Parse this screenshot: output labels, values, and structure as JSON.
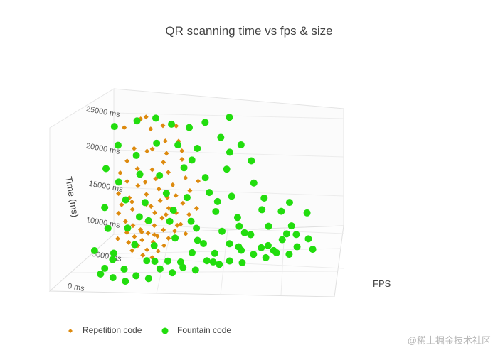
{
  "chart_data": {
    "type": "scatter",
    "title": "QR scanning time vs fps & size",
    "z_axis": {
      "label": "Time (ms)",
      "ticks": [
        "0 ms",
        "5000 ms",
        "10000 ms",
        "15000 ms",
        "20000 ms",
        "25000 ms"
      ],
      "range": [
        0,
        27000
      ]
    },
    "x_axis": {
      "label": "FPS"
    },
    "series": [
      {
        "name": "Repetition code",
        "color": "#dd8a0e",
        "marker": "diamond",
        "points": [
          [
            190,
            22300
          ],
          [
            105,
            25900
          ],
          [
            175,
            24800
          ],
          [
            120,
            26200
          ],
          [
            140,
            24300
          ],
          [
            60,
            24600
          ],
          [
            155,
            21100
          ],
          [
            230,
            22200
          ],
          [
            85,
            19400
          ],
          [
            200,
            20300
          ],
          [
            165,
            17800
          ],
          [
            120,
            18100
          ],
          [
            250,
            19200
          ],
          [
            215,
            17200
          ],
          [
            180,
            16300
          ],
          [
            130,
            15400
          ],
          [
            95,
            16200
          ],
          [
            270,
            16100
          ],
          [
            235,
            15100
          ],
          [
            195,
            14600
          ],
          [
            160,
            13900
          ],
          [
            110,
            13600
          ],
          [
            75,
            14400
          ],
          [
            290,
            13900
          ],
          [
            250,
            13300
          ],
          [
            205,
            12700
          ],
          [
            165,
            12300
          ],
          [
            125,
            11700
          ],
          [
            90,
            12600
          ],
          [
            275,
            11900
          ],
          [
            235,
            11300
          ],
          [
            195,
            10800
          ],
          [
            150,
            10300
          ],
          [
            110,
            9900
          ],
          [
            260,
            10400
          ],
          [
            220,
            9800
          ],
          [
            175,
            9500
          ],
          [
            135,
            9100
          ],
          [
            300,
            9900
          ],
          [
            245,
            8900
          ],
          [
            200,
            8700
          ],
          [
            160,
            8300
          ],
          [
            120,
            8100
          ],
          [
            280,
            8400
          ],
          [
            230,
            7800
          ],
          [
            185,
            7600
          ],
          [
            145,
            7300
          ],
          [
            265,
            7400
          ],
          [
            215,
            6900
          ],
          [
            170,
            6600
          ],
          [
            130,
            6500
          ],
          [
            250,
            6300
          ],
          [
            205,
            6000
          ],
          [
            160,
            5800
          ],
          [
            240,
            5200
          ],
          [
            190,
            4900
          ],
          [
            145,
            5100
          ],
          [
            225,
            4400
          ],
          [
            180,
            4100
          ],
          [
            210,
            3500
          ],
          [
            100,
            21300
          ],
          [
            215,
            24700
          ],
          [
            70,
            17600
          ],
          [
            310,
            15400
          ],
          [
            85,
            11300
          ],
          [
            320,
            10800
          ],
          [
            95,
            7300
          ],
          [
            300,
            6700
          ],
          [
            195,
            18900
          ],
          [
            140,
            20800
          ],
          [
            245,
            20600
          ],
          [
            180,
            11900
          ],
          [
            150,
            15900
          ],
          [
            225,
            13100
          ],
          [
            180,
            9700
          ],
          [
            205,
            7200
          ],
          [
            165,
            7900
          ],
          [
            230,
            10300
          ],
          [
            120,
            12900
          ],
          [
            270,
            8300
          ]
        ]
      },
      {
        "name": "Fountain code",
        "color": "#22dd0e",
        "marker": "circle",
        "points": [
          [
            30,
            24800
          ],
          [
            95,
            25600
          ],
          [
            150,
            26000
          ],
          [
            200,
            25000
          ],
          [
            255,
            24400
          ],
          [
            300,
            25200
          ],
          [
            370,
            26000
          ],
          [
            50,
            21900
          ],
          [
            110,
            20200
          ],
          [
            165,
            22000
          ],
          [
            230,
            21600
          ],
          [
            290,
            20900
          ],
          [
            355,
            22600
          ],
          [
            420,
            21200
          ],
          [
            25,
            18400
          ],
          [
            70,
            16200
          ],
          [
            130,
            17200
          ],
          [
            190,
            16800
          ],
          [
            260,
            17800
          ],
          [
            330,
            15900
          ],
          [
            390,
            17100
          ],
          [
            460,
            18300
          ],
          [
            40,
            12400
          ],
          [
            100,
            13300
          ],
          [
            160,
            12600
          ],
          [
            220,
            13800
          ],
          [
            285,
            12800
          ],
          [
            350,
            13300
          ],
          [
            420,
            12300
          ],
          [
            480,
            14300
          ],
          [
            60,
            9100
          ],
          [
            120,
            8800
          ],
          [
            180,
            9600
          ],
          [
            245,
            9100
          ],
          [
            310,
            8700
          ],
          [
            380,
            9900
          ],
          [
            450,
            8400
          ],
          [
            520,
            9300
          ],
          [
            30,
            5900
          ],
          [
            90,
            5100
          ],
          [
            150,
            6000
          ],
          [
            210,
            5400
          ],
          [
            270,
            6200
          ],
          [
            340,
            5300
          ],
          [
            410,
            6300
          ],
          [
            480,
            5500
          ],
          [
            550,
            6100
          ],
          [
            70,
            2900
          ],
          [
            130,
            2300
          ],
          [
            195,
            3100
          ],
          [
            260,
            2500
          ],
          [
            330,
            3300
          ],
          [
            400,
            2600
          ],
          [
            470,
            3100
          ],
          [
            540,
            2300
          ],
          [
            600,
            3200
          ],
          [
            100,
            1200
          ],
          [
            170,
            900
          ],
          [
            240,
            1400
          ],
          [
            310,
            1000
          ],
          [
            380,
            1500
          ],
          [
            450,
            800
          ],
          [
            520,
            1300
          ],
          [
            590,
            900
          ],
          [
            650,
            1400
          ],
          [
            140,
            300
          ],
          [
            210,
            100
          ],
          [
            280,
            400
          ],
          [
            350,
            200
          ],
          [
            420,
            500
          ],
          [
            490,
            100
          ],
          [
            560,
            300
          ],
          [
            630,
            200
          ],
          [
            700,
            400
          ],
          [
            60,
            2100
          ],
          [
            620,
            5600
          ],
          [
            580,
            8600
          ],
          [
            660,
            7700
          ],
          [
            150,
            10400
          ],
          [
            520,
            11400
          ],
          [
            380,
            11600
          ],
          [
            250,
            10900
          ],
          [
            440,
            3900
          ],
          [
            360,
            4600
          ],
          [
            300,
            2000
          ],
          [
            480,
            2400
          ],
          [
            500,
            5000
          ],
          [
            560,
            2500
          ],
          [
            580,
            1400
          ],
          [
            610,
            4200
          ],
          [
            400,
            1100
          ],
          [
            220,
            2800
          ],
          [
            90,
            4100
          ],
          [
            330,
            7400
          ],
          [
            460,
            6800
          ],
          [
            390,
            20000
          ],
          [
            280,
            19000
          ],
          [
            600,
            10100
          ],
          [
            640,
            3800
          ],
          [
            680,
            2600
          ]
        ]
      }
    ],
    "legend": {
      "placement": "bottom-left",
      "items": [
        "Repetition code",
        "Fountain code"
      ]
    }
  },
  "watermark": "@稀土掘金技术社区"
}
